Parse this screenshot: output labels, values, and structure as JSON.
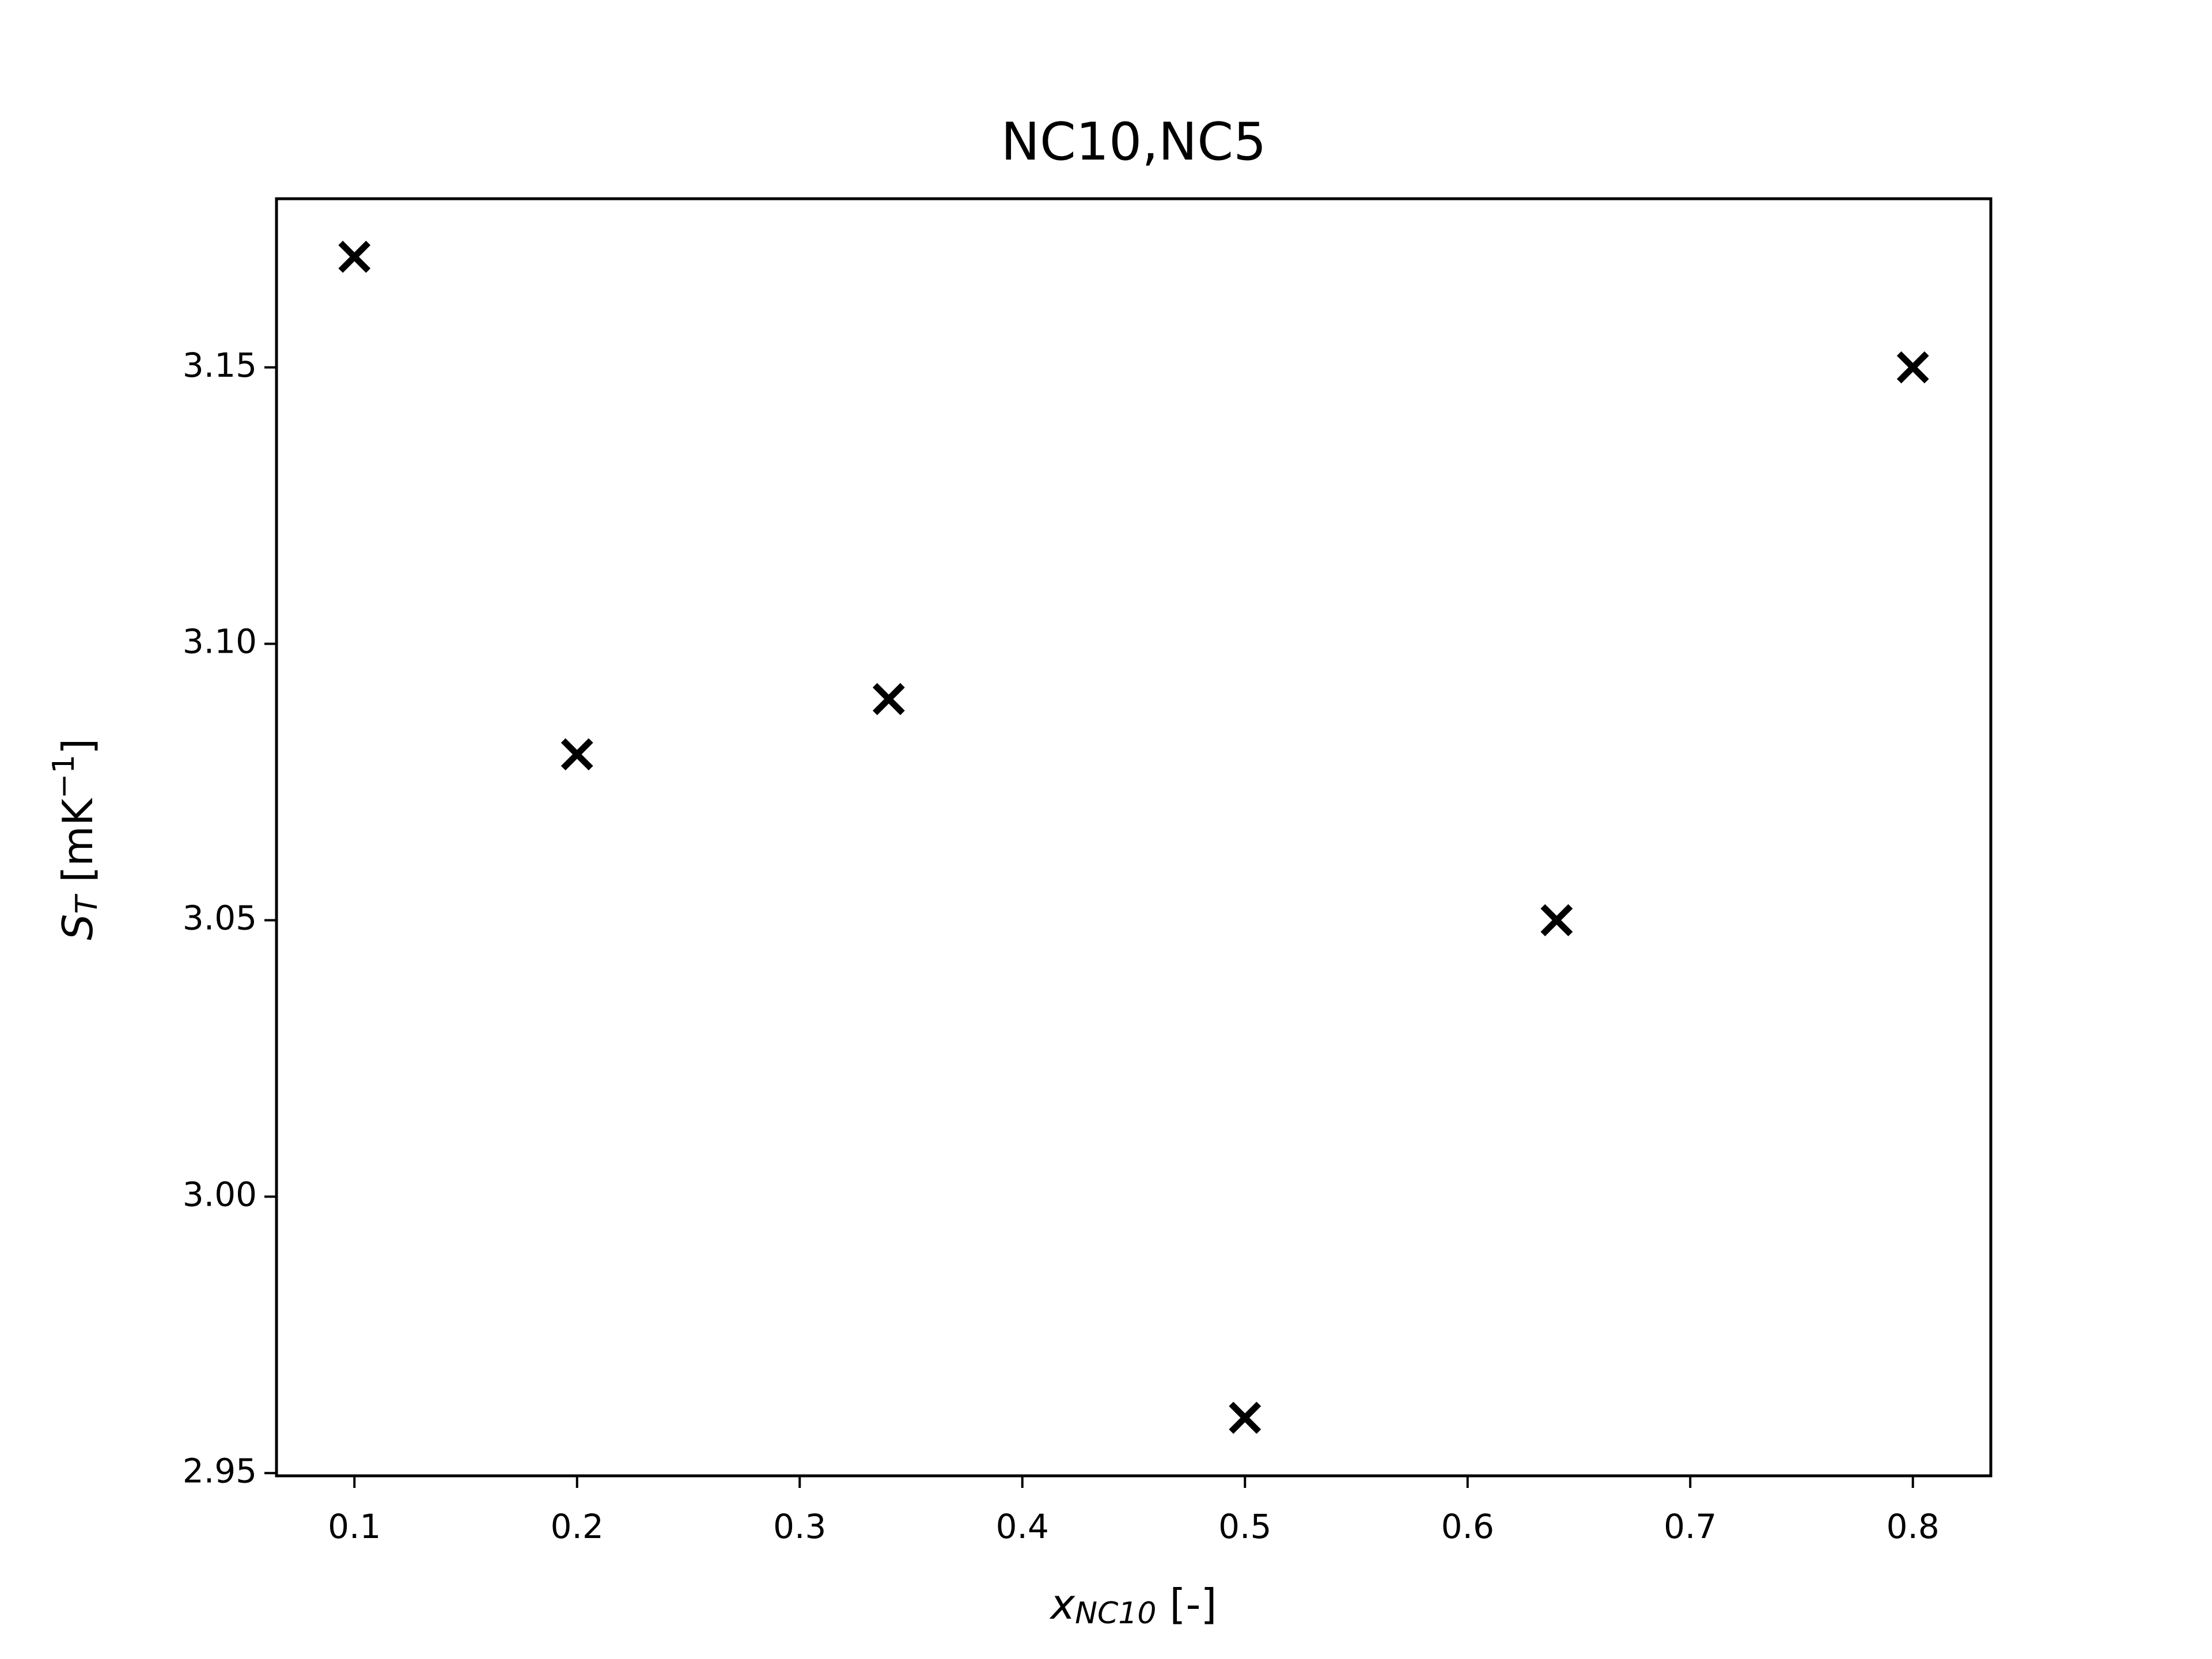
{
  "chart_data": {
    "type": "scatter",
    "title": "NC10,NC5",
    "x_label": {
      "base": "x",
      "sub": "NC10",
      "rest": " [-]"
    },
    "y_label": {
      "base": "S",
      "sub": "T",
      "rest": " [mK",
      "sup": "−1",
      "end": "]"
    },
    "series": [
      {
        "color": "#000000",
        "marker": "x",
        "x": [
          0.1,
          0.2,
          0.34,
          0.5,
          0.64,
          0.8
        ],
        "values": [
          3.17,
          3.08,
          3.09,
          2.96,
          3.05,
          3.15
        ]
      }
    ],
    "xlim": [
      0.065,
      0.835
    ],
    "xticks": [
      0.1,
      0.2,
      0.3,
      0.4,
      0.5,
      0.6,
      0.7,
      0.8
    ],
    "ylim": [
      2.9495,
      3.1805
    ],
    "yticks": [
      {
        "value": 2.95,
        "label": "2.95"
      },
      {
        "value": 3.0,
        "label": "3.00"
      },
      {
        "value": 3.05,
        "label": "3.05"
      },
      {
        "value": 3.1,
        "label": "3.10"
      },
      {
        "value": 3.15,
        "label": "3.15"
      }
    ],
    "grid": false
  }
}
